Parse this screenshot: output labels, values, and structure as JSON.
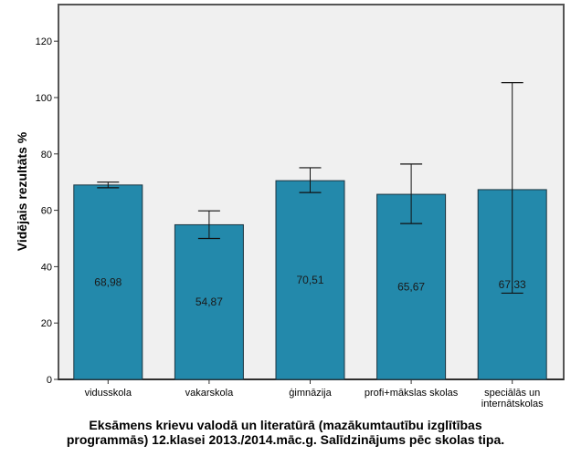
{
  "chart_data": {
    "type": "bar",
    "title": "",
    "xlabel_lines": [
      "Eksāmens krievu valodā un literatūrā (mazākumtautību izglītības",
      "programmās) 12.klasei 2013./2014.māc.g. Salīdzinājums pēc skolas tipa."
    ],
    "ylabel": "Vidējais rezultāts %",
    "ylim": [
      0,
      133
    ],
    "yticks": [
      0,
      20,
      40,
      60,
      80,
      100,
      120
    ],
    "grid": false,
    "categories": [
      [
        "vidusskola"
      ],
      [
        "vakarskola"
      ],
      [
        "ģimnāzija"
      ],
      [
        "profi+mākslas skolas"
      ],
      [
        "speciālās un",
        "internātskolas"
      ]
    ],
    "values": [
      68.98,
      54.87,
      70.51,
      65.67,
      67.33
    ],
    "value_labels": [
      "68,98",
      "54,87",
      "70,51",
      "65,67",
      "67,33"
    ],
    "error_bars": [
      {
        "low": 68.0,
        "high": 70.0
      },
      {
        "low": 50.0,
        "high": 59.8
      },
      {
        "low": 66.3,
        "high": 75.1
      },
      {
        "low": 55.3,
        "high": 76.4
      },
      {
        "low": 30.6,
        "high": 105.3
      }
    ],
    "colors": {
      "bar_fill": "#2389ab",
      "bar_stroke": "#1b3440",
      "plot_background": "#f0f0f0",
      "axis": "#555555"
    }
  }
}
